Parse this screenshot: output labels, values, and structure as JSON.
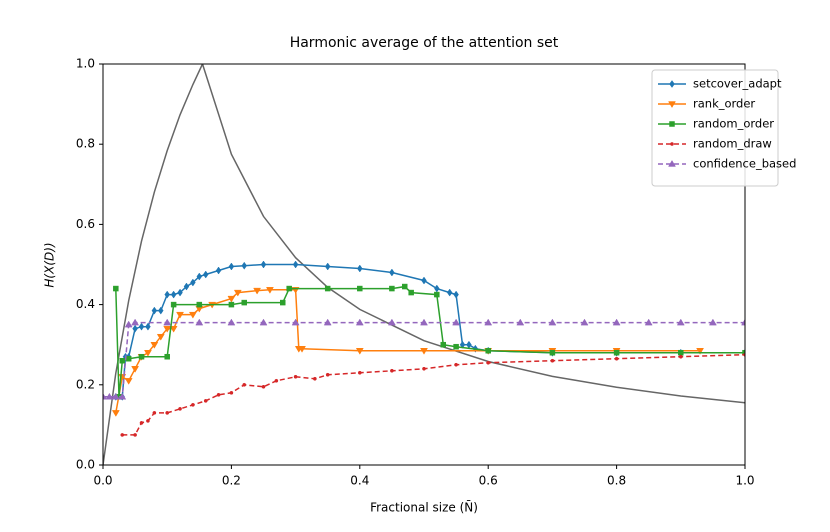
{
  "chart_data": {
    "type": "line",
    "title": "Harmonic average of the attention set",
    "x_label": "Fractional size (N̄)",
    "y_label": "H(X(D))",
    "xlim": [
      0.0,
      1.0
    ],
    "ylim": [
      0.0,
      1.0
    ],
    "xticks": [
      {
        "value": 0.0,
        "label": "0.0"
      },
      {
        "value": 0.2,
        "label": "0.2"
      },
      {
        "value": 0.4,
        "label": "0.4"
      },
      {
        "value": 0.6,
        "label": "0.6"
      },
      {
        "value": 0.8,
        "label": "0.8"
      },
      {
        "value": 1.0,
        "label": "1.0"
      }
    ],
    "yticks": [
      {
        "value": 0.0,
        "label": "0.0"
      },
      {
        "value": 0.2,
        "label": "0.2"
      },
      {
        "value": 0.4,
        "label": "0.4"
      },
      {
        "value": 0.6,
        "label": "0.6"
      },
      {
        "value": 0.8,
        "label": "0.8"
      },
      {
        "value": 1.0,
        "label": "1.0"
      }
    ],
    "legend": "upper right",
    "series": [
      {
        "color": "#666666",
        "linestyle": "solid",
        "marker": "none",
        "x": [
          0,
          0.02,
          0.04,
          0.06,
          0.08,
          0.1,
          0.12,
          0.14,
          0.155,
          0.2,
          0.25,
          0.3,
          0.35,
          0.4,
          0.5,
          0.6,
          0.7,
          0.8,
          0.9,
          1.0
        ],
        "values": [
          0,
          0.229,
          0.41,
          0.558,
          0.681,
          0.784,
          0.873,
          0.949,
          1.0,
          0.775,
          0.62,
          0.517,
          0.443,
          0.388,
          0.31,
          0.258,
          0.221,
          0.194,
          0.172,
          0.155
        ]
      },
      {
        "name": "setcover_adapt",
        "color": "#1f77b4",
        "linestyle": "solid",
        "marker": "diamond",
        "x": [
          0.02,
          0.03,
          0.035,
          0.04,
          0.05,
          0.06,
          0.07,
          0.08,
          0.09,
          0.1,
          0.11,
          0.12,
          0.13,
          0.14,
          0.15,
          0.16,
          0.18,
          0.2,
          0.22,
          0.25,
          0.3,
          0.35,
          0.4,
          0.45,
          0.5,
          0.52,
          0.54,
          0.55,
          0.56,
          0.57,
          0.58,
          0.6,
          0.7,
          0.8,
          0.9,
          1.0
        ],
        "values": [
          0.17,
          0.17,
          0.27,
          0.27,
          0.34,
          0.345,
          0.345,
          0.385,
          0.385,
          0.425,
          0.425,
          0.43,
          0.445,
          0.455,
          0.47,
          0.475,
          0.485,
          0.495,
          0.497,
          0.5,
          0.5,
          0.495,
          0.49,
          0.48,
          0.46,
          0.44,
          0.43,
          0.425,
          0.3,
          0.3,
          0.29,
          0.285,
          0.28,
          0.28,
          0.28,
          0.28
        ]
      },
      {
        "name": "rank_order",
        "color": "#ff7f0e",
        "linestyle": "solid",
        "marker": "triangle-down",
        "x": [
          0.02,
          0.03,
          0.04,
          0.05,
          0.06,
          0.07,
          0.08,
          0.09,
          0.1,
          0.11,
          0.12,
          0.14,
          0.15,
          0.17,
          0.2,
          0.21,
          0.24,
          0.26,
          0.3,
          0.305,
          0.31,
          0.4,
          0.5,
          0.6,
          0.7,
          0.8,
          0.93
        ],
        "values": [
          0.13,
          0.22,
          0.21,
          0.24,
          0.27,
          0.28,
          0.3,
          0.32,
          0.34,
          0.34,
          0.375,
          0.375,
          0.39,
          0.4,
          0.415,
          0.43,
          0.435,
          0.437,
          0.437,
          0.29,
          0.29,
          0.285,
          0.285,
          0.285,
          0.285,
          0.285,
          0.285
        ]
      },
      {
        "name": "random_order",
        "color": "#2ca02c",
        "linestyle": "solid",
        "marker": "square",
        "x": [
          0.02,
          0.025,
          0.03,
          0.04,
          0.06,
          0.1,
          0.11,
          0.15,
          0.2,
          0.22,
          0.28,
          0.29,
          0.35,
          0.4,
          0.45,
          0.47,
          0.48,
          0.52,
          0.53,
          0.55,
          0.6,
          0.7,
          0.8,
          0.9,
          1.0
        ],
        "values": [
          0.44,
          0.17,
          0.26,
          0.265,
          0.27,
          0.27,
          0.4,
          0.4,
          0.4,
          0.405,
          0.405,
          0.44,
          0.44,
          0.44,
          0.44,
          0.445,
          0.43,
          0.425,
          0.3,
          0.295,
          0.285,
          0.28,
          0.28,
          0.28,
          0.28
        ]
      },
      {
        "name": "random_draw",
        "color": "#d62728",
        "linestyle": "dashed",
        "marker": "point",
        "x": [
          0.03,
          0.05,
          0.06,
          0.07,
          0.08,
          0.1,
          0.12,
          0.14,
          0.16,
          0.18,
          0.2,
          0.22,
          0.25,
          0.27,
          0.3,
          0.33,
          0.35,
          0.4,
          0.45,
          0.5,
          0.55,
          0.6,
          0.7,
          0.8,
          0.9,
          1.0
        ],
        "values": [
          0.075,
          0.075,
          0.105,
          0.11,
          0.13,
          0.13,
          0.14,
          0.15,
          0.16,
          0.175,
          0.18,
          0.2,
          0.195,
          0.21,
          0.22,
          0.215,
          0.225,
          0.23,
          0.235,
          0.24,
          0.25,
          0.255,
          0.26,
          0.265,
          0.27,
          0.275
        ]
      },
      {
        "name": "confidence_based",
        "color": "#9467bd",
        "linestyle": "dashed",
        "marker": "triangle-up",
        "x": [
          0,
          0.01,
          0.02,
          0.03,
          0.04,
          0.05,
          0.1,
          0.15,
          0.2,
          0.25,
          0.3,
          0.35,
          0.4,
          0.45,
          0.5,
          0.55,
          0.6,
          0.65,
          0.7,
          0.75,
          0.8,
          0.85,
          0.9,
          0.95,
          1.0
        ],
        "values": [
          0.17,
          0.17,
          0.17,
          0.17,
          0.35,
          0.355,
          0.355,
          0.355,
          0.355,
          0.355,
          0.355,
          0.355,
          0.355,
          0.355,
          0.355,
          0.355,
          0.355,
          0.355,
          0.355,
          0.355,
          0.355,
          0.355,
          0.355,
          0.355,
          0.355
        ]
      }
    ]
  }
}
